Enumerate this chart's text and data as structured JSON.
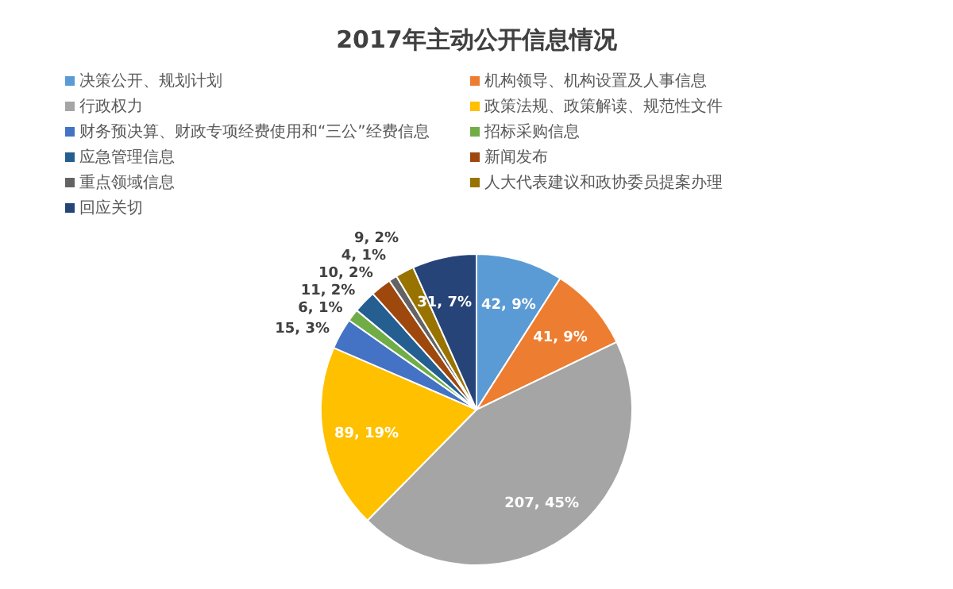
{
  "chart_data": {
    "type": "pie",
    "title": "2017年主动公开信息情况",
    "categories": [
      "决策公开、规划计划",
      "机构领导、机构设置及人事信息",
      "行政权力",
      "政策法规、政策解读、规范性文件",
      "财务预决算、财政专项经费使用和“三公”经费信息",
      "招标采购信息",
      "应急管理信息",
      "新闻发布",
      "重点领域信息",
      "人大代表建议和政协委员提案办理",
      "回应关切"
    ],
    "values": [
      42,
      41,
      207,
      89,
      15,
      6,
      11,
      10,
      4,
      9,
      31
    ],
    "colors": [
      "#5b9bd5",
      "#ed7d31",
      "#a5a5a5",
      "#ffc000",
      "#4472c4",
      "#70ad47",
      "#255e91",
      "#9e480e",
      "#636363",
      "#997300",
      "#264478"
    ],
    "value_labels": [
      "42, 9%",
      "41, 9%",
      "207, 45%",
      "89, 19%",
      "15, 3%",
      "6, 1%",
      "11, 2%",
      "10, 2%",
      "4, 1%",
      "9, 2%",
      "31, 7%"
    ],
    "legend": "top"
  }
}
